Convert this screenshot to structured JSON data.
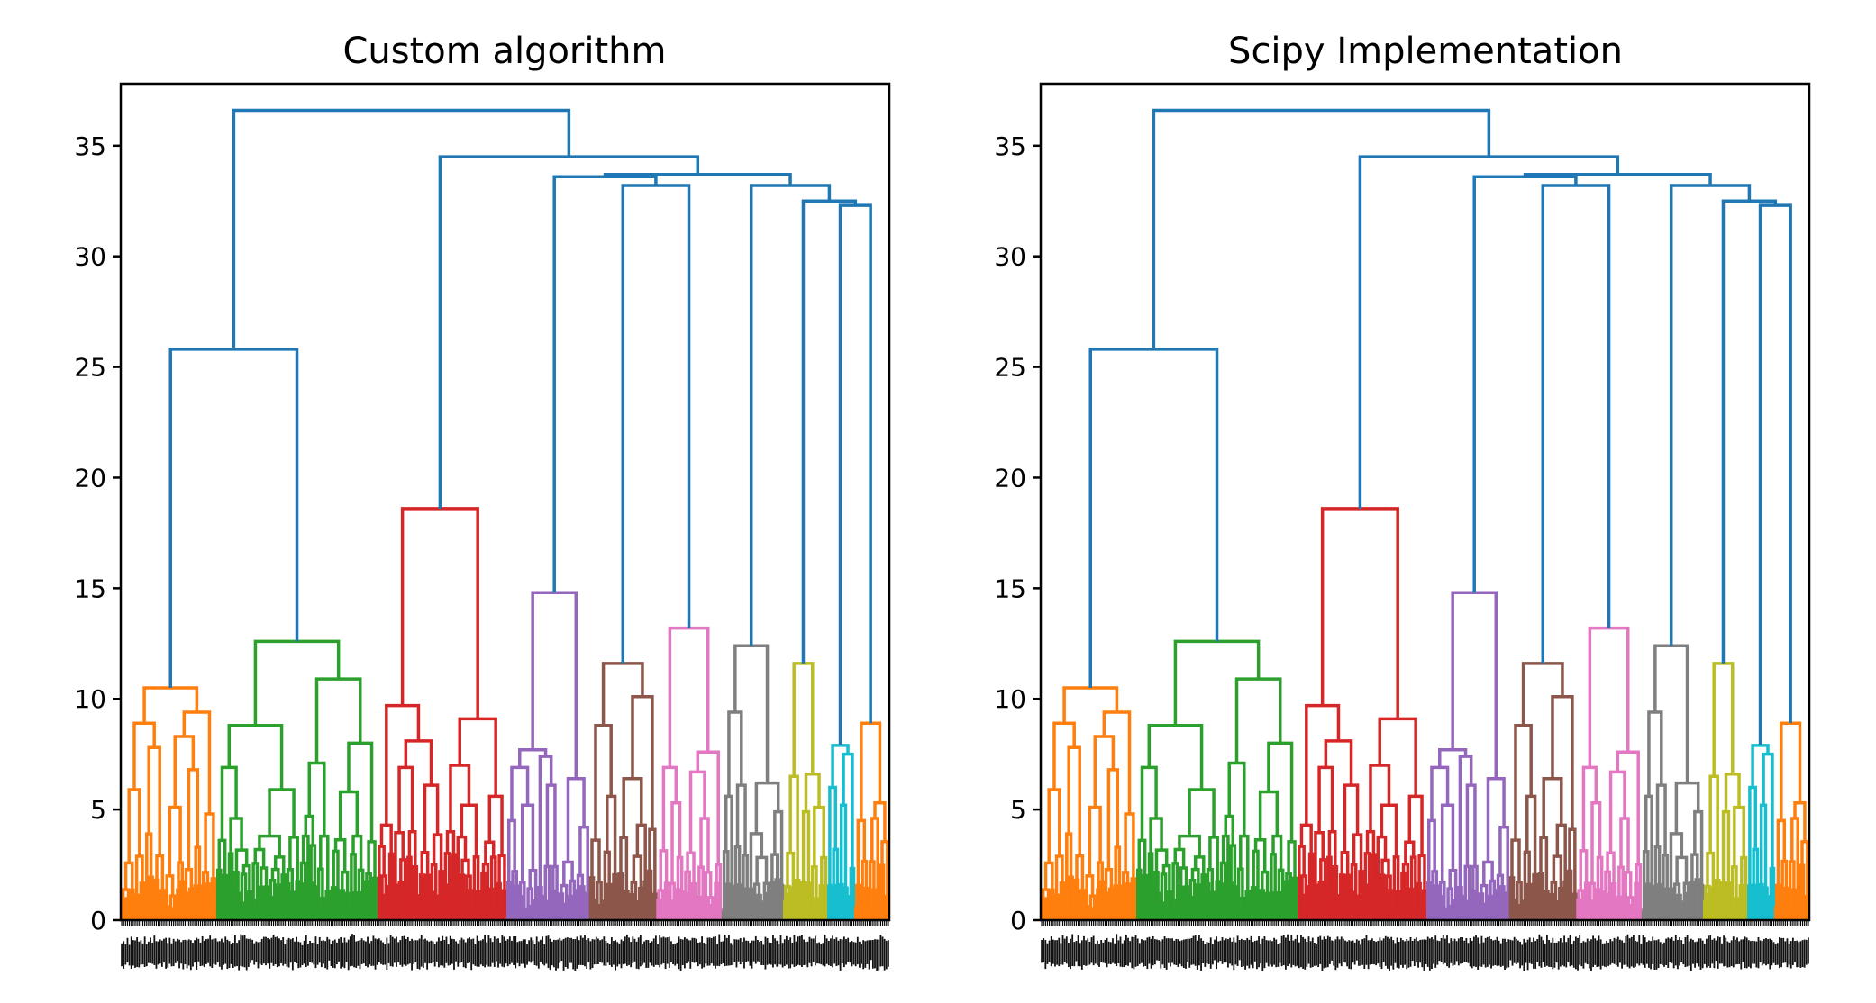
{
  "figure": {
    "panels": [
      {
        "title": "Custom algorithm"
      },
      {
        "title": "Scipy Implementation"
      }
    ]
  },
  "chart_data": [
    {
      "type": "dendrogram",
      "title": "Custom algorithm",
      "xlabel": "",
      "ylabel": "",
      "ylim": [
        0,
        37.8
      ],
      "yticks": [
        0,
        5,
        10,
        15,
        20,
        25,
        30,
        35
      ],
      "grid": false,
      "legend": "none",
      "leaf_count": 400,
      "clusters": [
        {
          "color": "#ff7f0e",
          "leaf_range": [
            0,
            50
          ],
          "merge_height": 10.5,
          "shape": [
            4.8,
            5.1,
            8.3,
            9.4,
            10.5,
            8.9,
            7.8,
            6.8,
            5.9,
            3.9
          ]
        },
        {
          "color": "#2ca02c",
          "leaf_range": [
            50,
            134
          ],
          "merge_height": 12.6,
          "shape": [
            3.8,
            8.8,
            5.8,
            7.1,
            4.7,
            12.6,
            10.9,
            6.9,
            8.0,
            5.9,
            4.6
          ]
        },
        {
          "color": "#d62728",
          "leaf_range": [
            134,
            201
          ],
          "merge_height": 18.6,
          "shape": [
            4.3,
            9.1,
            7.0,
            6.1,
            5.2,
            18.6,
            9.7,
            6.9,
            8.1,
            5.6,
            4.0
          ]
        },
        {
          "color": "#9467bd",
          "leaf_range": [
            201,
            244
          ],
          "merge_height": 14.8,
          "shape": [
            4.2,
            7.4,
            6.4,
            5.2,
            14.8,
            7.6,
            6.9,
            6.1,
            4.5
          ]
        },
        {
          "color": "#8c564b",
          "leaf_range": [
            244,
            279
          ],
          "merge_height": 11.6,
          "shape": [
            4.1,
            6.4,
            11.6,
            8.8,
            10.1,
            5.6,
            4.3
          ]
        },
        {
          "color": "#e377c2",
          "leaf_range": [
            279,
            313
          ],
          "merge_height": 13.2,
          "shape": [
            4.6,
            6.7,
            13.2,
            7.6,
            6.9,
            5.3
          ]
        },
        {
          "color": "#7f7f7f",
          "leaf_range": [
            313,
            345
          ],
          "merge_height": 12.4,
          "shape": [
            5.6,
            6.2,
            12.4,
            9.4,
            6.1,
            4.9
          ]
        },
        {
          "color": "#bcbd22",
          "leaf_range": [
            345,
            368
          ],
          "merge_height": 11.6,
          "shape": [
            5.1,
            6.5,
            11.6,
            6.6,
            4.9
          ]
        },
        {
          "color": "#17becf",
          "leaf_range": [
            368,
            382
          ],
          "merge_height": 7.9,
          "shape": [
            6.0,
            7.9,
            7.5,
            5.2
          ]
        },
        {
          "color": "#ff7f0e",
          "leaf_range": [
            382,
            400
          ],
          "merge_height": 8.9,
          "shape": [
            4.5,
            8.9,
            5.3,
            4.6
          ]
        }
      ],
      "upper_links": [
        {
          "left": "orange",
          "right": "green",
          "height": 25.8,
          "color": "#1f77b4"
        },
        {
          "left": "purple",
          "right": "brown-pink",
          "height": 33.6,
          "color": "#1f77b4"
        },
        {
          "left": "brown",
          "right": "pink",
          "height": 33.2,
          "color": "#1f77b4"
        },
        {
          "left": "gray",
          "right": "olive-cyan-orange",
          "height": 33.2,
          "color": "#1f77b4"
        },
        {
          "left": "olive",
          "right": "cyan-orange",
          "height": 32.5,
          "color": "#1f77b4"
        },
        {
          "left": "cyan",
          "right": "orange",
          "height": 32.3,
          "color": "#1f77b4"
        },
        {
          "left": "purple-pink",
          "right": "gray-orange",
          "height": 33.7,
          "color": "#1f77b4"
        },
        {
          "left": "red",
          "right": "purple-orange",
          "height": 34.5,
          "color": "#1f77b4"
        },
        {
          "left": "orange-green",
          "right": "red-orange",
          "height": 36.6,
          "color": "#1f77b4"
        }
      ]
    },
    {
      "type": "dendrogram",
      "title": "Scipy Implementation",
      "xlabel": "",
      "ylabel": "",
      "ylim": [
        0,
        37.8
      ],
      "yticks": [
        0,
        5,
        10,
        15,
        20,
        25,
        30,
        35
      ],
      "grid": false,
      "legend": "none",
      "leaf_count": 400,
      "same_structure_as": "Custom algorithm"
    }
  ]
}
